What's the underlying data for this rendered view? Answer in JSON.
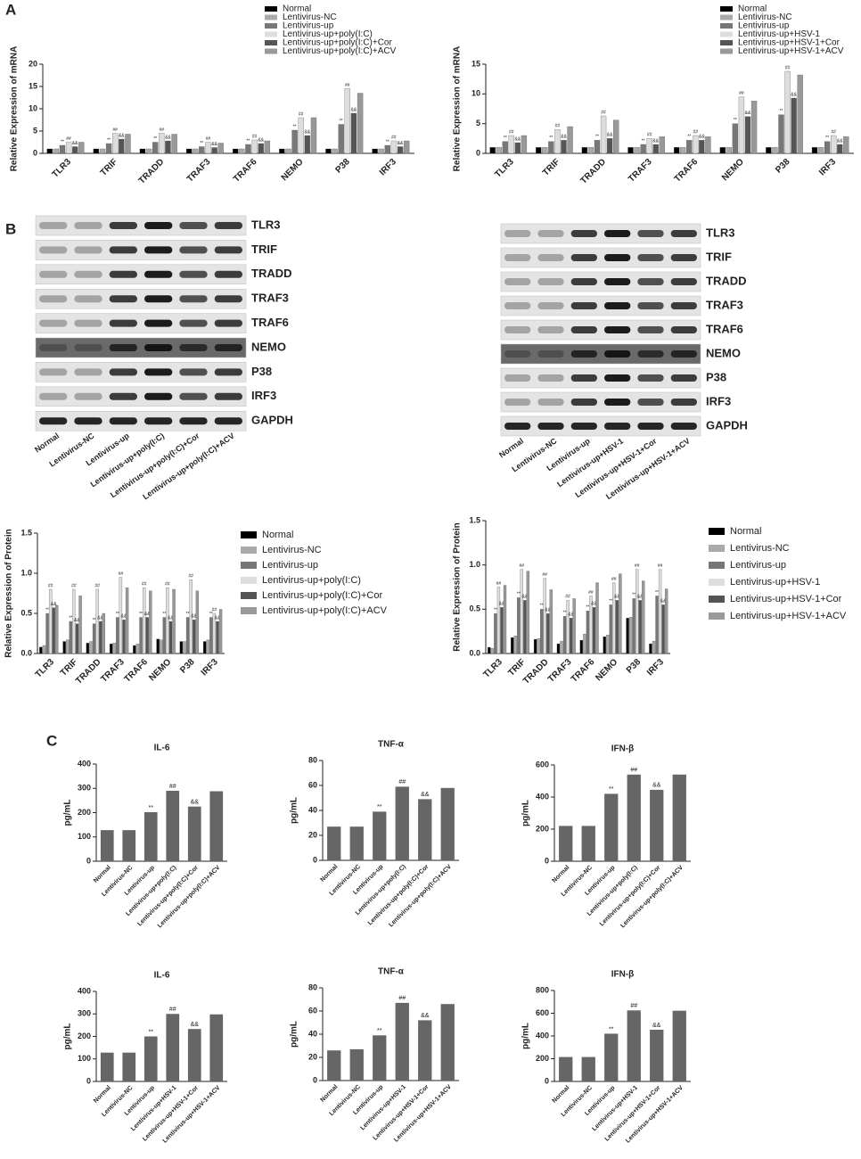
{
  "panel_labels": [
    "A",
    "B",
    "C"
  ],
  "chart_data": [
    {
      "type": "grouped-bar",
      "y_label": "Relative Expression of mRNA",
      "legend": "top",
      "categories": [
        "TLR3",
        "TRIF",
        "TRADD",
        "TRAF3",
        "TRAF6",
        "NEMO",
        "P38",
        "IRF3"
      ],
      "ylim": [
        0,
        20
      ],
      "yticks": [
        0,
        5,
        10,
        15,
        20
      ],
      "series": [
        {
          "name": "Normal",
          "color": "#000000",
          "values": [
            1,
            1,
            1,
            1,
            1,
            1,
            1,
            1
          ]
        },
        {
          "name": "Lentivirus-NC",
          "color": "#aaaaaa",
          "values": [
            1,
            1,
            1,
            1,
            1,
            1,
            1,
            1
          ]
        },
        {
          "name": "Lentivirus-up",
          "color": "#777777",
          "marker": "**",
          "values": [
            1.8,
            2.2,
            2.5,
            1.5,
            2,
            5.2,
            6.5,
            1.8
          ]
        },
        {
          "name": "Lentivirus-up+poly(I:C)",
          "color": "#dddddd",
          "marker": "##",
          "values": [
            2.5,
            4.5,
            4.5,
            2.5,
            3,
            8,
            14.5,
            2.8
          ]
        },
        {
          "name": "Lentivirus-up+poly(I:C)+Cor",
          "color": "#555555",
          "marker": "&&",
          "values": [
            1.5,
            3.2,
            2.8,
            1.3,
            2.2,
            4,
            9,
            1.5
          ]
        },
        {
          "name": "Lentivirus-up+poly(I:C)+ACV",
          "color": "#999999",
          "values": [
            2.5,
            4.3,
            4.3,
            2.3,
            2.8,
            8,
            13.5,
            2.8
          ]
        }
      ]
    },
    {
      "type": "grouped-bar",
      "y_label": "Relative Expression of mRNA",
      "legend": "top",
      "categories": [
        "TLR3",
        "TRIF",
        "TRADD",
        "TRAF3",
        "TRAF6",
        "NEMO",
        "P38",
        "IRF3"
      ],
      "ylim": [
        0,
        15
      ],
      "yticks": [
        0,
        5,
        10,
        15
      ],
      "series": [
        {
          "name": "Normal",
          "color": "#000000",
          "values": [
            1,
            1,
            1,
            1,
            1,
            1,
            1,
            1
          ]
        },
        {
          "name": "Lentivirus-NC",
          "color": "#aaaaaa",
          "values": [
            1,
            1,
            1,
            1,
            1,
            1,
            1,
            1
          ]
        },
        {
          "name": "Lentivirus-up",
          "color": "#777777",
          "marker": "**",
          "values": [
            2,
            2,
            2.2,
            1.5,
            2.2,
            5,
            6.5,
            2
          ]
        },
        {
          "name": "Lentivirus-up+HSV-1",
          "color": "#dddddd",
          "marker": "##",
          "values": [
            3,
            4,
            6.3,
            2.5,
            3,
            9.5,
            13.8,
            3
          ]
        },
        {
          "name": "Lentivirus-up+HSV-1+Cor",
          "color": "#555555",
          "marker": "&&",
          "values": [
            1.8,
            2.2,
            2.5,
            1.5,
            2.2,
            6.2,
            9.3,
            1.5
          ]
        },
        {
          "name": "Lentivirus-up+HSV-1+ACV",
          "color": "#999999",
          "values": [
            3,
            4.5,
            5.6,
            2.8,
            2.8,
            8.8,
            13.2,
            2.8
          ]
        }
      ]
    },
    {
      "type": "grouped-bar",
      "y_label": "Relative Expression of Protein",
      "legend": "right",
      "categories": [
        "TLR3",
        "TRIF",
        "TRADD",
        "TRAF3",
        "TRAF6",
        "NEMO",
        "P38",
        "IRF3"
      ],
      "ylim": [
        0,
        1.5
      ],
      "yticks": [
        {
          "value": 0,
          "label": "0.0"
        },
        0.5,
        {
          "value": 1,
          "label": "1.0"
        },
        1.5
      ],
      "series": [
        {
          "name": "Normal",
          "color": "#000000",
          "values": [
            0.08,
            0.15,
            0.13,
            0.12,
            0.1,
            0.18,
            0.15,
            0.15
          ]
        },
        {
          "name": "Lentivirus-NC",
          "color": "#aaaaaa",
          "values": [
            0.1,
            0.17,
            0.15,
            0.13,
            0.12,
            0.17,
            0.15,
            0.17
          ]
        },
        {
          "name": "Lentivirus-up",
          "color": "#777777",
          "marker": "**",
          "values": [
            0.5,
            0.4,
            0.37,
            0.45,
            0.45,
            0.45,
            0.45,
            0.45
          ]
        },
        {
          "name": "Lentivirus-up+poly(I:C)",
          "color": "#dddddd",
          "marker": "##",
          "values": [
            0.8,
            0.8,
            0.8,
            0.95,
            0.82,
            0.82,
            0.92,
            0.5
          ]
        },
        {
          "name": "Lentivirus-up+poly(I:C)+Cor",
          "color": "#555555",
          "marker": "&&",
          "values": [
            0.57,
            0.37,
            0.4,
            0.42,
            0.45,
            0.4,
            0.42,
            0.4
          ]
        },
        {
          "name": "Lentivirus-up+poly(I:C)+ACV",
          "color": "#999999",
          "values": [
            0.6,
            0.72,
            0.5,
            0.82,
            0.78,
            0.8,
            0.78,
            0.55
          ]
        }
      ]
    },
    {
      "type": "grouped-bar",
      "y_label": "Relative Expression of Protein",
      "legend": "right",
      "categories": [
        "TLR3",
        "TRIF",
        "TRADD",
        "TRAF3",
        "TRAF6",
        "NEMO",
        "P38",
        "IRF3"
      ],
      "ylim": [
        0,
        1.5
      ],
      "yticks": [
        {
          "value": 0,
          "label": "0.0"
        },
        0.5,
        {
          "value": 1,
          "label": "1.0"
        },
        1.5
      ],
      "series": [
        {
          "name": "Normal",
          "color": "#000000",
          "values": [
            0.07,
            0.18,
            0.16,
            0.11,
            0.15,
            0.19,
            0.4,
            0.11
          ]
        },
        {
          "name": "Lentivirus-NC",
          "color": "#aaaaaa",
          "values": [
            0.06,
            0.2,
            0.17,
            0.14,
            0.22,
            0.21,
            0.41,
            0.14
          ]
        },
        {
          "name": "Lentivirus-up",
          "color": "#777777",
          "marker": "**",
          "values": [
            0.45,
            0.63,
            0.5,
            0.42,
            0.48,
            0.55,
            0.62,
            0.65
          ]
        },
        {
          "name": "Lentivirus-up+HSV-1",
          "color": "#dddddd",
          "marker": "##",
          "values": [
            0.75,
            0.95,
            0.85,
            0.6,
            0.65,
            0.8,
            0.95,
            0.95
          ]
        },
        {
          "name": "Lentivirus-up+HSV-1+Cor",
          "color": "#555555",
          "marker": "&&",
          "values": [
            0.52,
            0.6,
            0.45,
            0.4,
            0.52,
            0.6,
            0.6,
            0.55
          ]
        },
        {
          "name": "Lentivirus-up+HSV-1+ACV",
          "color": "#999999",
          "values": [
            0.77,
            0.93,
            0.72,
            0.62,
            0.8,
            0.9,
            0.82,
            0.73
          ]
        }
      ]
    },
    {
      "type": "bar",
      "title": "IL-6",
      "y_label": "pg/mL",
      "color": "#666666",
      "categories": [
        "Normal",
        "Lentivirus-NC",
        "Lentivirus-up",
        "Lentivirus-up+poly(I:C)",
        "Lentivirus-up+poly(I:C)+Cor",
        "Lentivirus-up+poly(I:C)+ACV"
      ],
      "values": [
        128,
        128,
        202,
        290,
        225,
        288
      ],
      "markers": [
        null,
        null,
        "**",
        "##",
        "&&",
        null
      ],
      "ylim": [
        0,
        400
      ],
      "yticks": [
        0,
        100,
        200,
        300,
        400
      ]
    },
    {
      "type": "bar",
      "title": "TNF-α",
      "y_label": "pg/mL",
      "color": "#666666",
      "categories": [
        "Normal",
        "Lentivirus-NC",
        "Lentivirus-up",
        "Lentivirus-up+poly(I:C)",
        "Lentivirus-up+poly(I:C)+Cor",
        "Lentivirus-up+poly(I:C)+ACV"
      ],
      "values": [
        27,
        27,
        39,
        59,
        49,
        58
      ],
      "markers": [
        null,
        null,
        "**",
        "##",
        "&&",
        null
      ],
      "ylim": [
        0,
        80
      ],
      "yticks": [
        0,
        20,
        40,
        60,
        80
      ]
    },
    {
      "type": "bar",
      "title": "IFN-β",
      "y_label": "pg/mL",
      "color": "#666666",
      "categories": [
        "Normal",
        "Lentivirus-NC",
        "Lentivirus-up",
        "Lentivirus-up+poly(I:C)",
        "Lentivirus-up+poly(I:C)+Cor",
        "Lentivirus-up+poly(I:C)+ACV"
      ],
      "values": [
        220,
        220,
        420,
        540,
        445,
        540
      ],
      "markers": [
        null,
        null,
        "**",
        "##",
        "&&",
        null
      ],
      "ylim": [
        0,
        600
      ],
      "yticks": [
        0,
        200,
        400,
        600
      ]
    },
    {
      "type": "bar",
      "title": "IL-6",
      "y_label": "pg/mL",
      "color": "#666666",
      "categories": [
        "Normal",
        "Lentivirus-NC",
        "Lentivirus-up",
        "Lentivirus-up+HSV-1",
        "Lentivirus-up+HSV-1+Cor",
        "Lentivirus-up+HSV-1+ACV"
      ],
      "values": [
        128,
        128,
        200,
        300,
        233,
        298
      ],
      "markers": [
        null,
        null,
        "**",
        "##",
        "&&",
        null
      ],
      "ylim": [
        0,
        400
      ],
      "yticks": [
        0,
        100,
        200,
        300,
        400
      ]
    },
    {
      "type": "bar",
      "title": "TNF-α",
      "y_label": "pg/mL",
      "color": "#666666",
      "categories": [
        "Normal",
        "Lentivirus-NC",
        "Lentivirus-up",
        "Lentivirus-up+HSV-1",
        "Lentivirus-up+HSV-1+Cor",
        "Lentivirus-up+HSV-1+ACV"
      ],
      "values": [
        26,
        27,
        39,
        67,
        52,
        66
      ],
      "markers": [
        null,
        null,
        "**",
        "##",
        "&&",
        null
      ],
      "ylim": [
        0,
        80
      ],
      "yticks": [
        0,
        20,
        40,
        60,
        80
      ]
    },
    {
      "type": "bar",
      "title": "IFN-β",
      "y_label": "pg/mL",
      "color": "#666666",
      "categories": [
        "Normal",
        "Lentivirus-NC",
        "Lentivirus-up",
        "Lentivirus-up+HSV-1",
        "Lentivirus-up+HSV-1+Cor",
        "Lentivirus-up+HSV-1+ACV"
      ],
      "values": [
        215,
        215,
        420,
        625,
        455,
        622
      ],
      "markers": [
        null,
        null,
        "**",
        "##",
        "&&",
        null
      ],
      "ylim": [
        0,
        800
      ],
      "yticks": [
        0,
        200,
        400,
        600,
        800
      ]
    }
  ],
  "blots": [
    {
      "bands": [
        "TLR3",
        "TRIF",
        "TRADD",
        "TRAF3",
        "TRAF6",
        "NEMO",
        "P38",
        "IRF3",
        "GAPDH"
      ],
      "lanes": [
        "Normal",
        "Lentivirus-NC",
        "Lentivirus-up",
        "Lentivirus-up+poly(I:C)",
        "Lentivirus-up+poly(I:C)+Cor",
        "Lentivirus-up+poly(I:C)+ACV"
      ]
    },
    {
      "bands": [
        "TLR3",
        "TRIF",
        "TRADD",
        "TRAF3",
        "TRAF6",
        "NEMO",
        "P38",
        "IRF3",
        "GAPDH"
      ],
      "lanes": [
        "Normal",
        "Lentivirus-NC",
        "Lentivirus-up",
        "Lentivirus-up+HSV-1",
        "Lentivirus-up+HSV-1+Cor",
        "Lentivirus-up+HSV-1+ACV"
      ]
    }
  ]
}
